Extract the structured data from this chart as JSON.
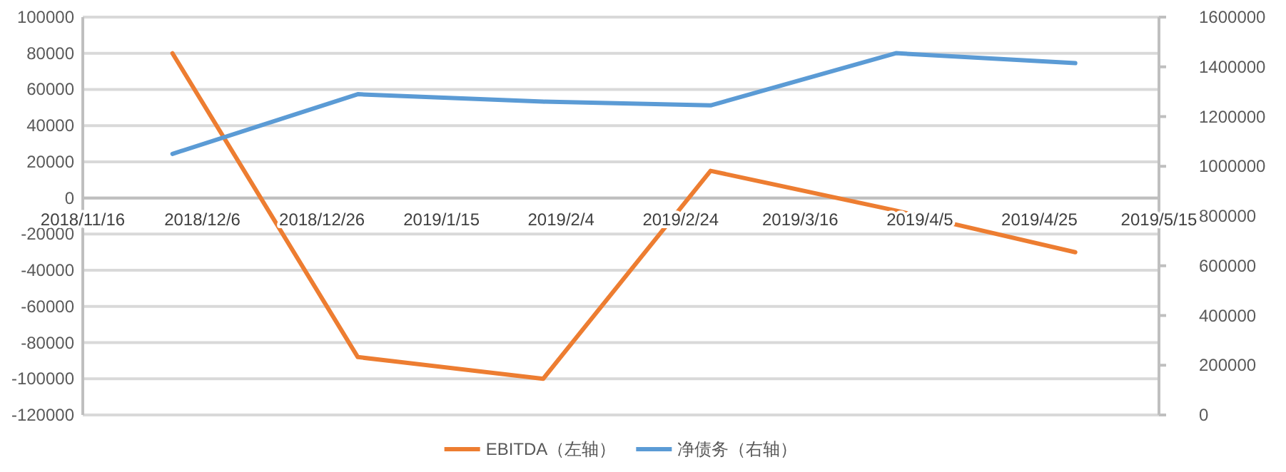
{
  "chart_data": {
    "type": "line",
    "x": [
      "2018-12-01",
      "2019-01-01",
      "2019-02-01",
      "2019-03-01",
      "2019-04-01",
      "2019-05-01"
    ],
    "series": [
      {
        "name": "EBITDA（左轴）",
        "color": "#ed7d31",
        "values": [
          80000,
          -88000,
          -100000,
          15000,
          -7000,
          -30000
        ]
      },
      {
        "name": "净债务（右轴）",
        "color": "#5b9bd5",
        "axis": "y2",
        "values": [
          1050000,
          1290000,
          1260000,
          1245000,
          1455000,
          1415000
        ]
      }
    ],
    "xlim": [
      "2018-11-16",
      "2019-05-15"
    ],
    "xticks": [
      {
        "value": "2018-11-16",
        "label": "2018/11/16"
      },
      {
        "value": "2018-12-06",
        "label": "2018/12/6"
      },
      {
        "value": "2018-12-26",
        "label": "2018/12/26"
      },
      {
        "value": "2019-01-15",
        "label": "2019/1/15"
      },
      {
        "value": "2019-02-04",
        "label": "2019/2/4"
      },
      {
        "value": "2019-02-24",
        "label": "2019/2/24"
      },
      {
        "value": "2019-03-16",
        "label": "2019/3/16"
      },
      {
        "value": "2019-04-05",
        "label": "2019/4/5"
      },
      {
        "value": "2019-04-25",
        "label": "2019/4/25"
      },
      {
        "value": "2019-05-15",
        "label": "2019/5/15"
      }
    ],
    "ylim": [
      -120000,
      100000
    ],
    "yticks": [
      -120000,
      -100000,
      -80000,
      -60000,
      -40000,
      -20000,
      0,
      20000,
      40000,
      60000,
      80000,
      100000
    ],
    "y2lim": [
      0,
      1600000
    ],
    "y2ticks": [
      0,
      200000,
      400000,
      600000,
      800000,
      1000000,
      1200000,
      1400000,
      1600000
    ],
    "grid": "y",
    "legend": "bottom",
    "marker": "none",
    "line_style": "solid"
  }
}
